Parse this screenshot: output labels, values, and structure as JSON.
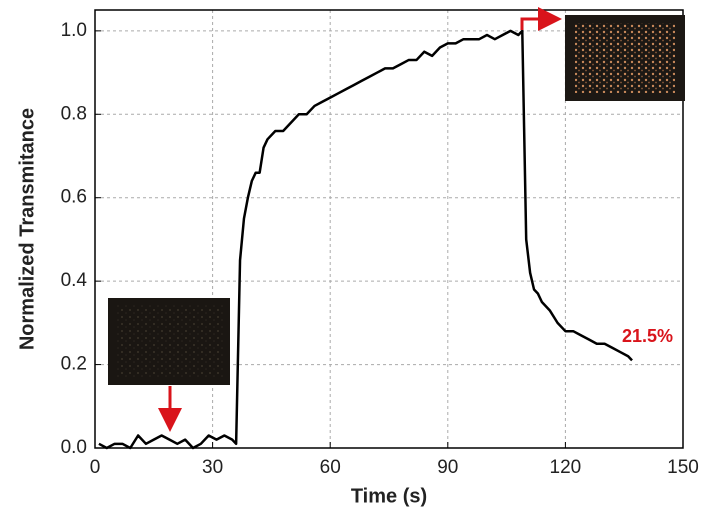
{
  "chart_data": {
    "type": "line",
    "x_label": "Time (s)",
    "y_label": "Normalized Transmitance",
    "annotation": "21.5%",
    "x": [
      1,
      3,
      5,
      7,
      9,
      11,
      13,
      15,
      17,
      19,
      21,
      23,
      25,
      27,
      29,
      31,
      33,
      35,
      36,
      37,
      38,
      39,
      40,
      41,
      42,
      43,
      44,
      46,
      48,
      50,
      52,
      54,
      56,
      58,
      60,
      62,
      64,
      66,
      68,
      70,
      72,
      74,
      76,
      78,
      80,
      82,
      84,
      86,
      88,
      90,
      92,
      94,
      96,
      98,
      100,
      102,
      104,
      106,
      108,
      109,
      110,
      111,
      112,
      113,
      114,
      116,
      118,
      120,
      122,
      124,
      126,
      128,
      130,
      132,
      134,
      136,
      137
    ],
    "series": [
      {
        "color": "#000000",
        "values": [
          0.01,
          0.0,
          0.01,
          0.01,
          0.0,
          0.03,
          0.01,
          0.02,
          0.03,
          0.02,
          0.01,
          0.02,
          0.0,
          0.01,
          0.03,
          0.02,
          0.03,
          0.02,
          0.01,
          0.45,
          0.55,
          0.6,
          0.64,
          0.66,
          0.66,
          0.72,
          0.74,
          0.76,
          0.76,
          0.78,
          0.8,
          0.8,
          0.82,
          0.83,
          0.84,
          0.85,
          0.86,
          0.87,
          0.88,
          0.89,
          0.9,
          0.91,
          0.91,
          0.92,
          0.93,
          0.93,
          0.95,
          0.94,
          0.96,
          0.97,
          0.97,
          0.98,
          0.98,
          0.98,
          0.99,
          0.98,
          0.99,
          1.0,
          0.99,
          1.0,
          0.5,
          0.42,
          0.38,
          0.37,
          0.35,
          0.33,
          0.3,
          0.28,
          0.28,
          0.27,
          0.26,
          0.25,
          0.25,
          0.24,
          0.23,
          0.22,
          0.21
        ]
      }
    ],
    "xlim": [
      0,
      150
    ],
    "xticks": [
      0,
      30,
      60,
      90,
      120,
      150
    ],
    "ylim": [
      0,
      1.05
    ],
    "yticks": [
      {
        "value": 0,
        "label": "0.0"
      },
      0.2,
      0.4,
      0.6,
      0.8,
      {
        "value": 1,
        "label": "1.0"
      }
    ],
    "grid": true
  }
}
